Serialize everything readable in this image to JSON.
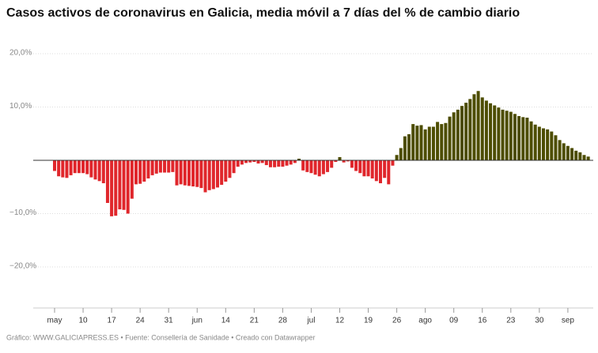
{
  "chart_data": {
    "type": "bar",
    "title": "Casos activos de coronavirus en Galicia,  media móvil a 7 días del % de cambio diario",
    "footer": "Gráfico: WWW.GALICIAPRESS.ES • Fuente: Consellería de Sanidade • Creado con Datawrapper",
    "categories": [
      "may",
      null,
      null,
      null,
      null,
      null,
      null,
      "10",
      null,
      null,
      null,
      null,
      null,
      null,
      "17",
      null,
      null,
      null,
      null,
      null,
      null,
      "24",
      null,
      null,
      null,
      null,
      null,
      null,
      "31",
      null,
      null,
      null,
      null,
      null,
      null,
      "jun",
      null,
      null,
      null,
      null,
      null,
      null,
      "14",
      null,
      null,
      null,
      null,
      null,
      null,
      "21",
      null,
      null,
      null,
      null,
      null,
      null,
      "28",
      null,
      null,
      null,
      null,
      null,
      null,
      "jul",
      null,
      null,
      null,
      null,
      null,
      null,
      "12",
      null,
      null,
      null,
      null,
      null,
      null,
      "19",
      null,
      null,
      null,
      null,
      null,
      null,
      "26",
      null,
      null,
      null,
      null,
      null,
      null,
      "ago",
      null,
      null,
      null,
      null,
      null,
      null,
      "09",
      null,
      null,
      null,
      null,
      null,
      null,
      "16",
      null,
      null,
      null,
      null,
      null,
      null,
      "23",
      null,
      null,
      null,
      null,
      null,
      null,
      "30",
      null,
      null,
      null,
      null,
      null,
      null,
      "sep",
      null,
      null,
      null,
      null,
      null
    ],
    "values": [
      -2.0,
      -3.0,
      -3.2,
      -3.3,
      -2.8,
      -2.4,
      -2.4,
      -2.4,
      -2.6,
      -3.2,
      -3.6,
      -3.9,
      -4.3,
      -8.0,
      -10.5,
      -10.4,
      -9.2,
      -9.3,
      -10.0,
      -7.2,
      -4.5,
      -4.4,
      -4.0,
      -3.4,
      -2.8,
      -2.5,
      -2.3,
      -2.3,
      -2.3,
      -2.2,
      -4.7,
      -4.5,
      -4.7,
      -4.8,
      -4.9,
      -5.0,
      -5.2,
      -6.0,
      -5.6,
      -5.4,
      -5.1,
      -4.6,
      -4.0,
      -3.3,
      -2.4,
      -1.2,
      -0.8,
      -0.5,
      -0.4,
      -0.3,
      -0.6,
      -0.5,
      -0.9,
      -1.3,
      -1.3,
      -1.2,
      -1.2,
      -1.0,
      -0.8,
      -0.5,
      0.3,
      -1.9,
      -2.2,
      -2.4,
      -2.7,
      -3.0,
      -2.6,
      -2.2,
      -1.4,
      -0.3,
      0.6,
      -0.4,
      -0.2,
      -1.4,
      -2.0,
      -2.4,
      -3.0,
      -3.0,
      -3.4,
      -3.9,
      -4.3,
      -3.3,
      -4.5,
      -1.0,
      1.0,
      2.3,
      4.5,
      4.9,
      6.8,
      6.5,
      6.6,
      5.8,
      6.3,
      6.3,
      7.2,
      6.8,
      7.0,
      8.2,
      9.0,
      9.5,
      10.2,
      10.8,
      11.5,
      12.4,
      13.0,
      11.8,
      11.2,
      10.7,
      10.3,
      9.9,
      9.5,
      9.3,
      9.1,
      8.7,
      8.3,
      8.1,
      8.0,
      7.3,
      6.7,
      6.3,
      6.0,
      5.8,
      5.4,
      4.7,
      3.8,
      3.2,
      2.7,
      2.3,
      1.8,
      1.5,
      1.0,
      0.7
    ],
    "colors": {
      "positive": "#4d4d00",
      "negative": "#e0262b"
    },
    "ylim": [
      -27,
      22
    ],
    "yticks": [
      {
        "value": 20,
        "label": "20,0%"
      },
      {
        "value": 10,
        "label": "10,0%"
      },
      {
        "value": -10,
        "label": "−10,0%"
      },
      {
        "value": -20,
        "label": "−20,0%"
      }
    ],
    "grid": true
  }
}
